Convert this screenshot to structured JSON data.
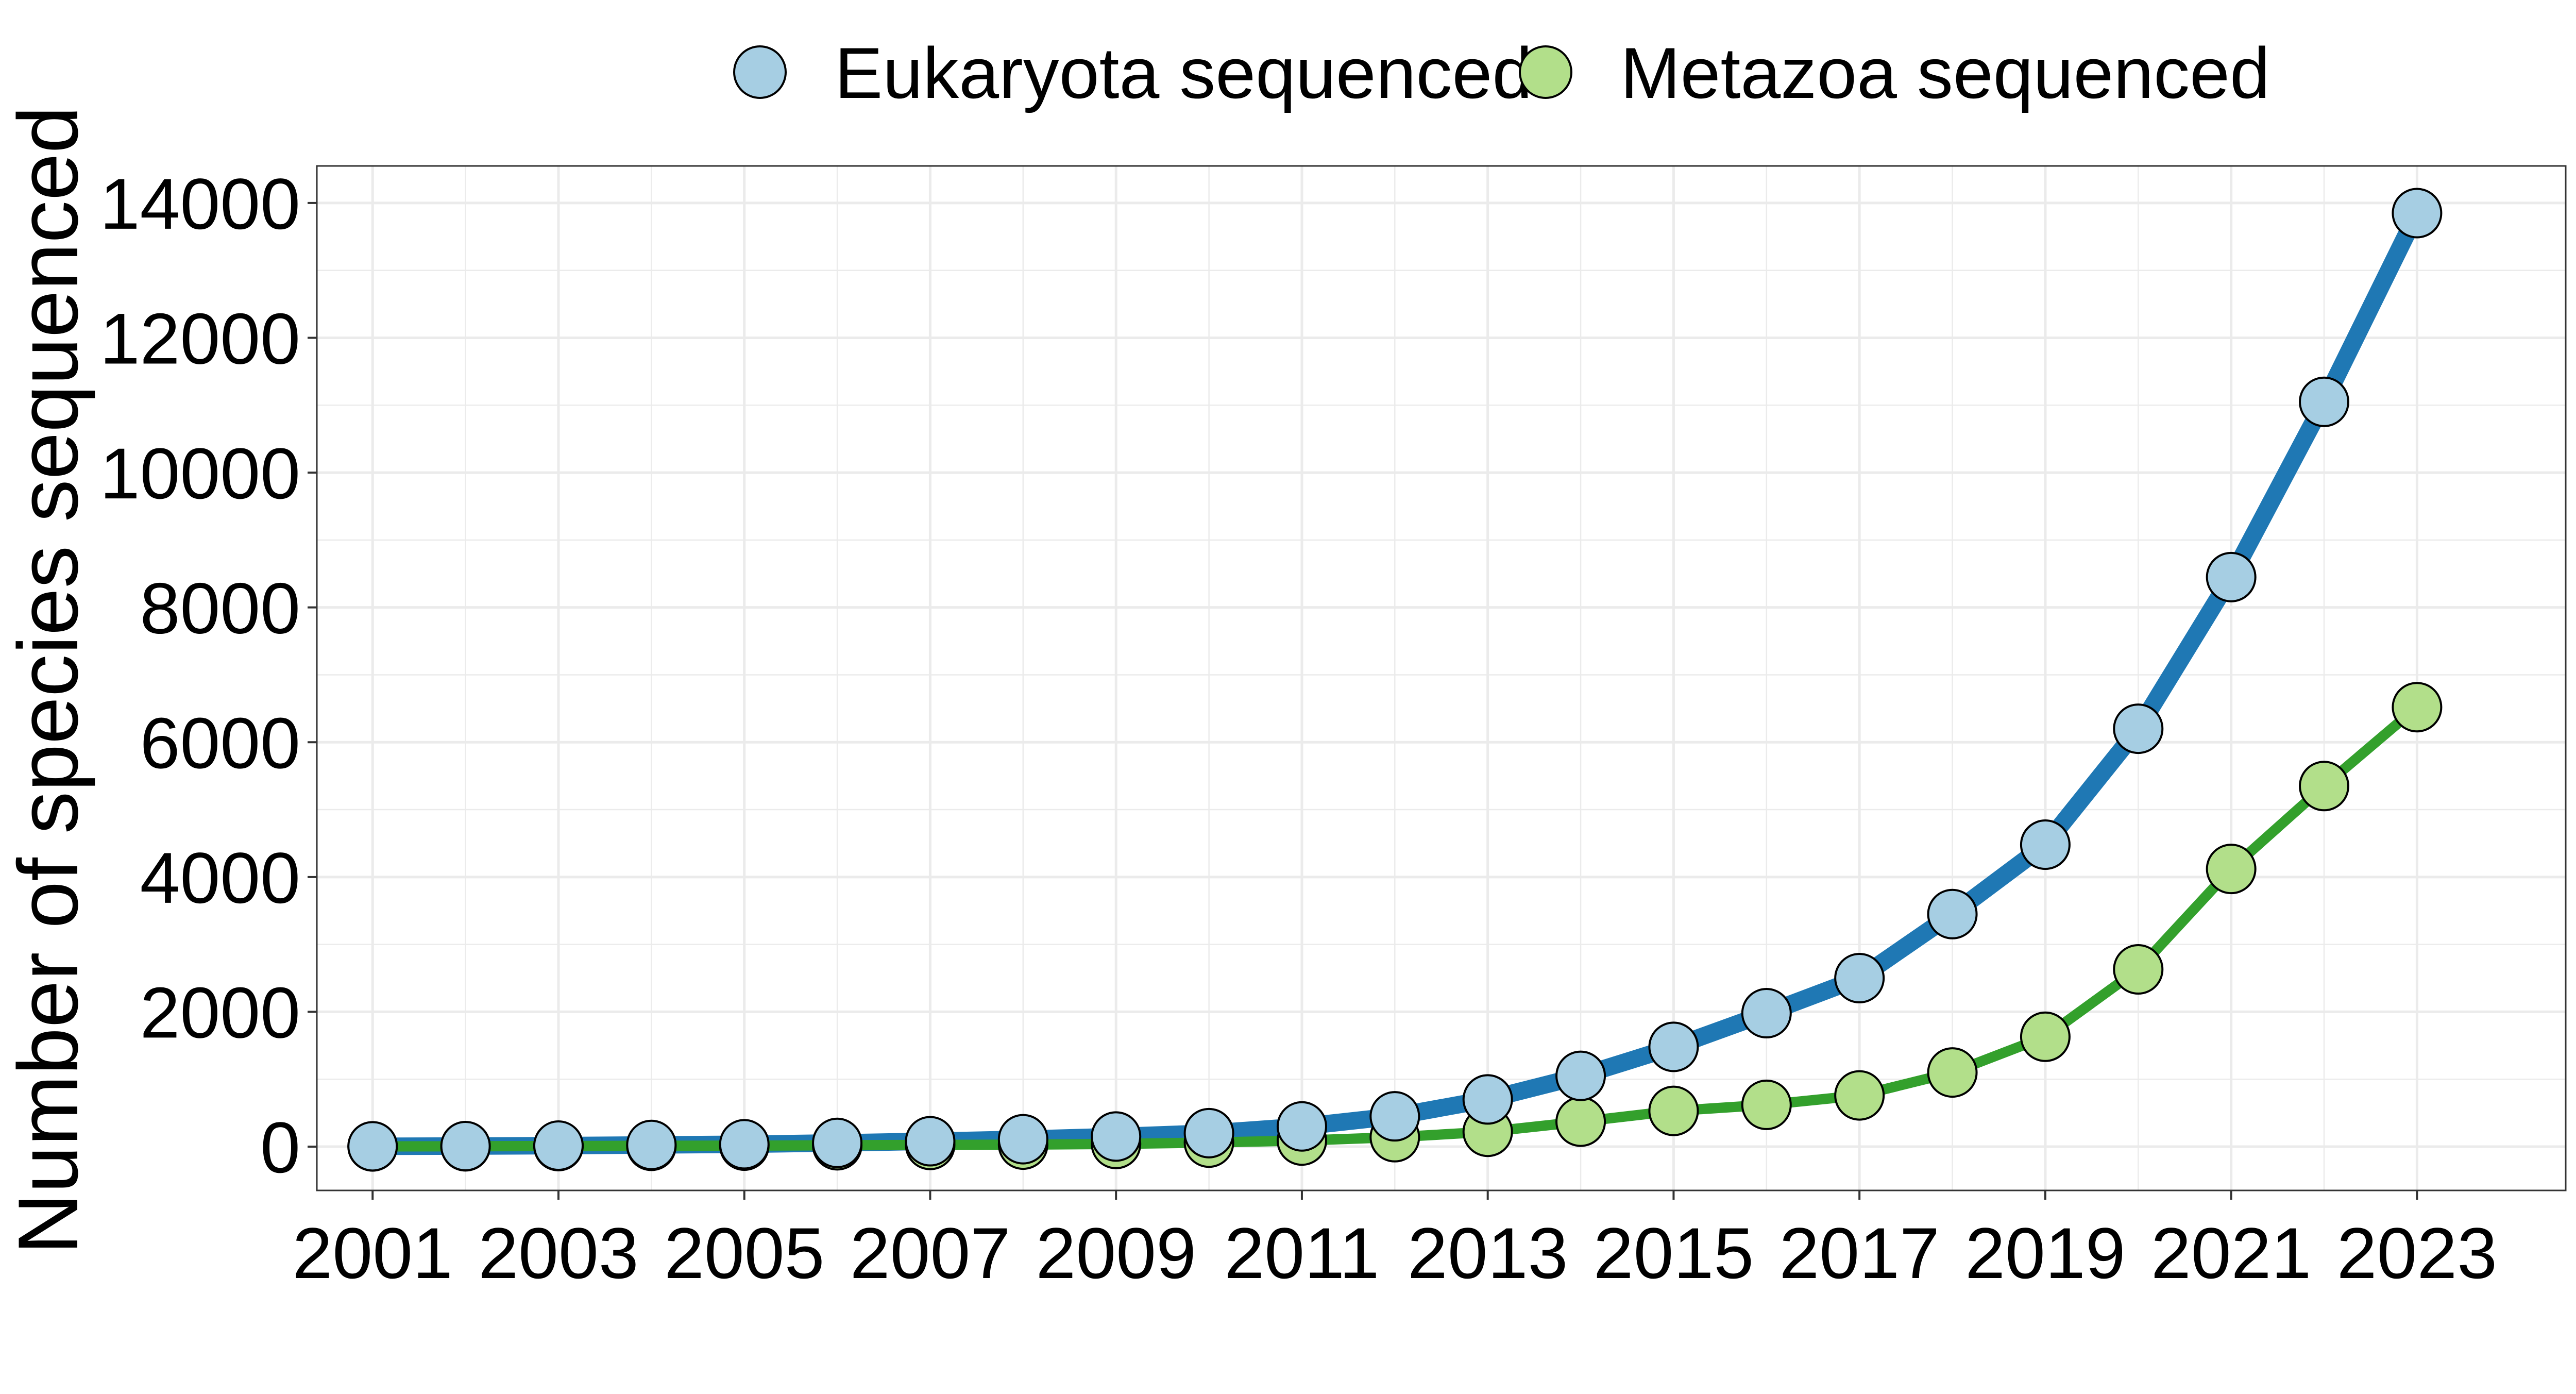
{
  "chart_data": {
    "type": "line",
    "title": "",
    "xlabel": "",
    "ylabel": "Number of species sequenced",
    "x": [
      2001,
      2002,
      2003,
      2004,
      2005,
      2006,
      2007,
      2008,
      2009,
      2010,
      2011,
      2012,
      2013,
      2014,
      2015,
      2016,
      2017,
      2018,
      2019,
      2020,
      2021,
      2022,
      2023
    ],
    "xlim": [
      2000.4,
      2024.6
    ],
    "x_tick_labels": [
      "2001",
      "2003",
      "2005",
      "2007",
      "2009",
      "2011",
      "2013",
      "2015",
      "2017",
      "2019",
      "2021",
      "2023"
    ],
    "ylim": [
      -650,
      14550
    ],
    "y_tick_labels": [
      "0",
      "2000",
      "4000",
      "6000",
      "8000",
      "10000",
      "12000",
      "14000"
    ],
    "grid": true,
    "legend_position": "top",
    "series": [
      {
        "name": "Eukaryota sequenced",
        "line_color": "#1f78b4",
        "marker_color": "#a6cee3",
        "values": [
          5,
          8,
          15,
          25,
          35,
          55,
          80,
          110,
          150,
          200,
          300,
          450,
          700,
          1050,
          1480,
          1980,
          2500,
          3450,
          4480,
          6200,
          8450,
          11050,
          13850
        ]
      },
      {
        "name": "Metazoa sequenced",
        "line_color": "#33a02c",
        "marker_color": "#b2df8a",
        "values": [
          3,
          5,
          8,
          12,
          15,
          20,
          25,
          30,
          40,
          60,
          90,
          140,
          220,
          370,
          530,
          620,
          760,
          1100,
          1630,
          2630,
          4120,
          5350,
          6520
        ]
      }
    ]
  }
}
